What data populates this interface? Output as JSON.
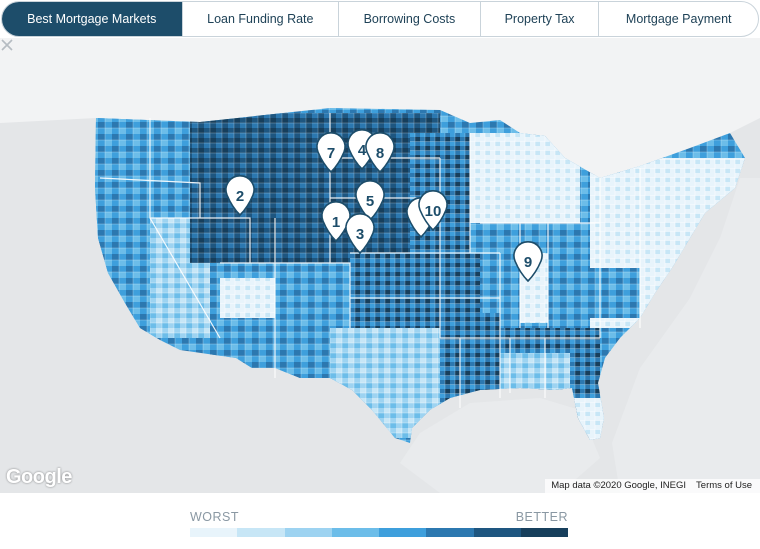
{
  "tabs": [
    {
      "label": "Best Mortgage Markets",
      "active": true
    },
    {
      "label": "Loan Funding Rate",
      "active": false
    },
    {
      "label": "Borrowing Costs",
      "active": false
    },
    {
      "label": "Property Tax",
      "active": false
    },
    {
      "label": "Mortgage Payment",
      "active": false
    }
  ],
  "map": {
    "pins": [
      {
        "label": "1"
      },
      {
        "label": "2"
      },
      {
        "label": "3"
      },
      {
        "label": "4"
      },
      {
        "label": "5"
      },
      {
        "label": "7"
      },
      {
        "label": "8"
      },
      {
        "label": "9"
      },
      {
        "label": "10"
      }
    ],
    "attribution": {
      "logo": "Google",
      "data": "Map data ©2020 Google, INEGI",
      "terms": "Terms of Use"
    }
  },
  "legend": {
    "low_label": "WORST",
    "high_label": "BETTER",
    "colors": [
      "#e8f4fb",
      "#c7e6f6",
      "#9dd3f1",
      "#6cbde9",
      "#3e9fdc",
      "#2c78b0",
      "#1e5680",
      "#173f5c"
    ]
  }
}
